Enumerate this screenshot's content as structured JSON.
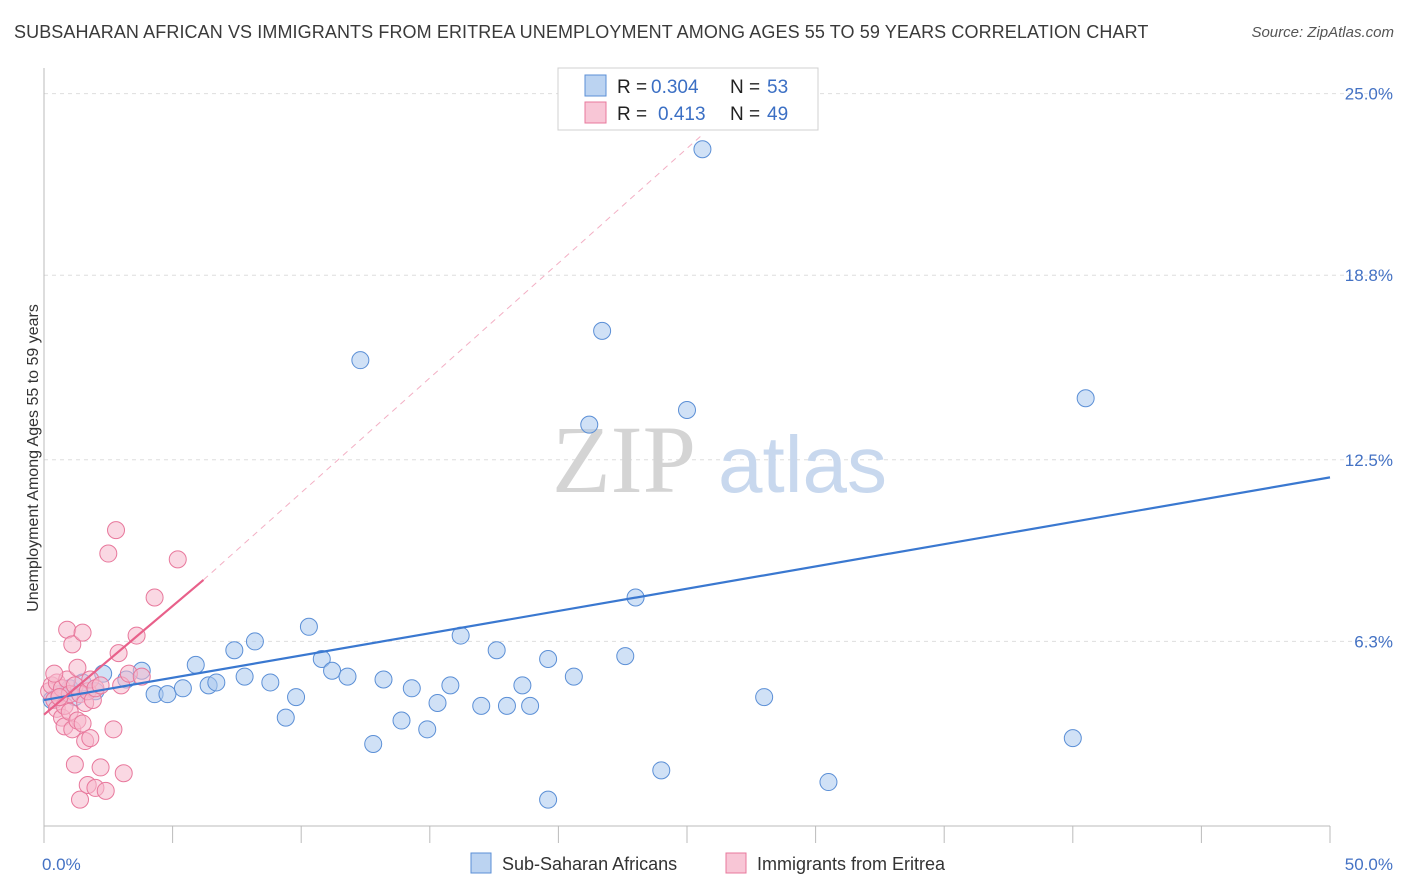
{
  "title": "SUBSAHARAN AFRICAN VS IMMIGRANTS FROM ERITREA UNEMPLOYMENT AMONG AGES 55 TO 59 YEARS CORRELATION CHART",
  "source": "Source: ZipAtlas.com",
  "watermark": {
    "zip": "ZIP",
    "atlas": "atlas"
  },
  "colors": {
    "blue_fill": "#aac8ee",
    "blue_stroke": "#5b8fd6",
    "blue_line": "#3a78d0",
    "pink_fill": "#f6b8cc",
    "pink_stroke": "#e8789c",
    "pink_line": "#e8608a",
    "value_text": "#3b6fc4"
  },
  "legend": {
    "rows": [
      {
        "r_label": "R =",
        "r_value": "0.304",
        "n_label": "N =",
        "n_value": "53"
      },
      {
        "r_label": "R =",
        "r_value": "0.413",
        "n_label": "N =",
        "n_value": "49"
      }
    ]
  },
  "bottom_legend": [
    "Sub-Saharan Africans",
    "Immigrants from Eritrea"
  ],
  "chart_data": {
    "type": "scatter",
    "ylabel": "Unemployment Among Ages 55 to 59 years",
    "xlim": [
      0,
      50
    ],
    "ylim": [
      0,
      25.6
    ],
    "x_tick_labels": [
      "0.0%",
      "50.0%"
    ],
    "y_ticks": [
      {
        "value": 6.3,
        "label": "6.3%"
      },
      {
        "value": 12.5,
        "label": "12.5%"
      },
      {
        "value": 18.8,
        "label": "18.8%"
      },
      {
        "value": 25.0,
        "label": "25.0%"
      }
    ],
    "series": [
      {
        "name": "Sub-Saharan Africans",
        "points": [
          [
            0.6,
            4.5
          ],
          [
            1.0,
            4.7
          ],
          [
            1.5,
            4.9
          ],
          [
            2.3,
            5.2
          ],
          [
            3.2,
            5.0
          ],
          [
            3.8,
            5.3
          ],
          [
            4.3,
            4.5
          ],
          [
            4.8,
            4.5
          ],
          [
            5.4,
            4.7
          ],
          [
            5.9,
            5.5
          ],
          [
            6.4,
            4.8
          ],
          [
            6.7,
            4.9
          ],
          [
            7.4,
            6.0
          ],
          [
            7.8,
            5.1
          ],
          [
            8.2,
            6.3
          ],
          [
            8.8,
            4.9
          ],
          [
            9.4,
            3.7
          ],
          [
            9.8,
            4.4
          ],
          [
            10.3,
            6.8
          ],
          [
            10.8,
            5.7
          ],
          [
            11.2,
            5.3
          ],
          [
            11.8,
            5.1
          ],
          [
            12.3,
            15.9
          ],
          [
            12.8,
            2.8
          ],
          [
            13.2,
            5.0
          ],
          [
            13.9,
            3.6
          ],
          [
            14.3,
            4.7
          ],
          [
            14.9,
            3.3
          ],
          [
            15.3,
            4.2
          ],
          [
            15.8,
            4.8
          ],
          [
            16.2,
            6.5
          ],
          [
            17.0,
            4.1
          ],
          [
            17.6,
            6.0
          ],
          [
            18.0,
            4.1
          ],
          [
            18.6,
            4.8
          ],
          [
            18.9,
            4.1
          ],
          [
            19.6,
            5.7
          ],
          [
            19.6,
            0.9
          ],
          [
            20.6,
            5.1
          ],
          [
            21.2,
            13.7
          ],
          [
            21.7,
            16.9
          ],
          [
            22.6,
            5.8
          ],
          [
            23.0,
            7.8
          ],
          [
            24.0,
            1.9
          ],
          [
            25.0,
            14.2
          ],
          [
            25.6,
            23.1
          ],
          [
            28.0,
            4.4
          ],
          [
            30.5,
            1.5
          ],
          [
            40.0,
            3.0
          ],
          [
            40.5,
            14.6
          ],
          [
            0.3,
            4.3
          ],
          [
            1.2,
            4.4
          ],
          [
            2.0,
            4.6
          ]
        ]
      },
      {
        "name": "Immigrants from Eritrea",
        "points": [
          [
            0.2,
            4.6
          ],
          [
            0.3,
            4.8
          ],
          [
            0.4,
            4.3
          ],
          [
            0.5,
            4.0
          ],
          [
            0.5,
            4.9
          ],
          [
            0.6,
            4.4
          ],
          [
            0.7,
            3.7
          ],
          [
            0.7,
            4.7
          ],
          [
            0.8,
            3.4
          ],
          [
            0.8,
            4.1
          ],
          [
            0.9,
            6.7
          ],
          [
            0.9,
            5.0
          ],
          [
            1.0,
            3.9
          ],
          [
            1.0,
            4.5
          ],
          [
            1.1,
            3.3
          ],
          [
            1.1,
            6.2
          ],
          [
            1.2,
            2.1
          ],
          [
            1.2,
            4.8
          ],
          [
            1.3,
            3.6
          ],
          [
            1.3,
            5.4
          ],
          [
            1.4,
            4.5
          ],
          [
            1.4,
            0.9
          ],
          [
            1.5,
            3.5
          ],
          [
            1.5,
            6.6
          ],
          [
            1.6,
            4.2
          ],
          [
            1.6,
            2.9
          ],
          [
            1.7,
            4.6
          ],
          [
            1.7,
            1.4
          ],
          [
            1.8,
            5.0
          ],
          [
            1.8,
            3.0
          ],
          [
            1.9,
            4.3
          ],
          [
            2.0,
            1.3
          ],
          [
            2.0,
            4.7
          ],
          [
            2.2,
            2.0
          ],
          [
            2.2,
            4.8
          ],
          [
            2.4,
            1.2
          ],
          [
            2.5,
            9.3
          ],
          [
            2.7,
            3.3
          ],
          [
            2.8,
            10.1
          ],
          [
            2.9,
            5.9
          ],
          [
            3.0,
            4.8
          ],
          [
            3.1,
            1.8
          ],
          [
            3.3,
            5.2
          ],
          [
            3.6,
            6.5
          ],
          [
            3.8,
            5.1
          ],
          [
            4.3,
            7.8
          ],
          [
            5.2,
            9.1
          ],
          [
            0.6,
            4.4
          ],
          [
            0.4,
            5.2
          ]
        ]
      }
    ],
    "trendlines": [
      {
        "series": "Sub-Saharan Africans",
        "x": [
          0,
          50
        ],
        "y": [
          4.3,
          11.9
        ]
      },
      {
        "series": "Immigrants from Eritrea",
        "x": [
          0,
          6.2
        ],
        "y": [
          3.8,
          8.4
        ]
      },
      {
        "series": "Immigrants from Eritrea",
        "style": "dashed",
        "x": [
          6.2,
          25.6
        ],
        "y": [
          8.4,
          23.6
        ]
      }
    ]
  }
}
